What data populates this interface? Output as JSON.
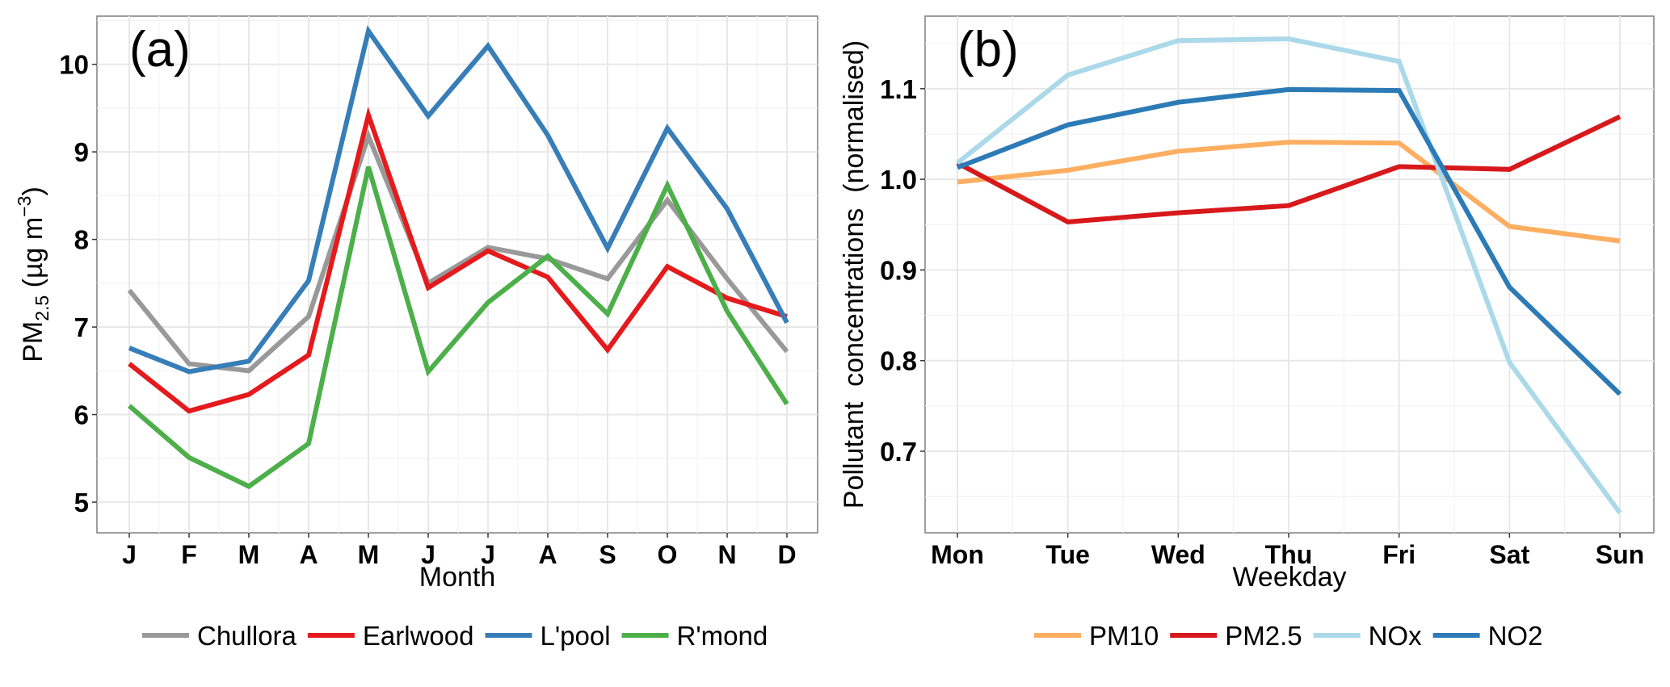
{
  "chart_data": [
    {
      "type": "line",
      "panel_label": "(a)",
      "title": "",
      "xlabel": "Month",
      "ylabel_main": "PM",
      "ylabel_sub": "2.5",
      "ylabel_units_pre": "(µg m",
      "ylabel_units_sup": "−3",
      "ylabel_units_post": ")",
      "categories": [
        "J",
        "F",
        "M",
        "A",
        "M",
        "J",
        "J",
        "A",
        "S",
        "O",
        "N",
        "D"
      ],
      "ylim": [
        4.65,
        10.55
      ],
      "yticks": [
        5,
        6,
        7,
        8,
        9,
        10
      ],
      "ytick_labels": [
        "5",
        "6",
        "7",
        "8",
        "9",
        "10"
      ],
      "grid": true,
      "legend_position": "bottom",
      "series": [
        {
          "name": "Chullora",
          "color": "#999999",
          "values": [
            7.42,
            6.58,
            6.5,
            7.12,
            9.18,
            7.5,
            7.91,
            7.78,
            7.55,
            8.45,
            7.55,
            6.72
          ]
        },
        {
          "name": "Earlwood",
          "color": "#e41a1c",
          "values": [
            6.58,
            6.04,
            6.23,
            6.68,
            9.42,
            7.45,
            7.87,
            7.57,
            6.74,
            7.69,
            7.33,
            7.12
          ]
        },
        {
          "name": "L'pool",
          "color": "#377eb8",
          "values": [
            6.76,
            6.49,
            6.61,
            7.53,
            10.38,
            9.41,
            10.21,
            9.19,
            7.9,
            9.27,
            8.35,
            7.05
          ]
        },
        {
          "name": "R'mond",
          "color": "#4daf4a",
          "values": [
            6.1,
            5.51,
            5.18,
            5.67,
            8.83,
            6.49,
            7.28,
            7.81,
            7.15,
            8.62,
            7.18,
            6.12
          ]
        }
      ]
    },
    {
      "type": "line",
      "panel_label": "(b)",
      "title": "",
      "xlabel": "Weekday",
      "ylabel": "Pollutant  concentrations  (normalised)",
      "categories": [
        "Mon",
        "Tue",
        "Wed",
        "Thu",
        "Fri",
        "Sat",
        "Sun"
      ],
      "ylim": [
        0.61,
        1.18
      ],
      "yticks": [
        0.7,
        0.8,
        0.9,
        1.0,
        1.1
      ],
      "ytick_labels": [
        "0.7",
        "0.8",
        "0.9",
        "1.0",
        "1.1"
      ],
      "grid": true,
      "legend_position": "bottom",
      "series": [
        {
          "name": "PM10",
          "color": "#fdae61",
          "values": [
            0.997,
            1.01,
            1.031,
            1.041,
            1.04,
            0.948,
            0.932
          ]
        },
        {
          "name": "PM2.5",
          "color": "#d7191c",
          "values": [
            1.018,
            0.953,
            0.963,
            0.971,
            1.014,
            1.011,
            1.069
          ]
        },
        {
          "name": "NOx",
          "color": "#abd9e9",
          "values": [
            1.018,
            1.115,
            1.153,
            1.155,
            1.13,
            0.798,
            0.632
          ]
        },
        {
          "name": "NO2",
          "color": "#2c7bb6",
          "values": [
            1.013,
            1.06,
            1.085,
            1.099,
            1.098,
            0.881,
            0.763
          ]
        }
      ]
    }
  ]
}
